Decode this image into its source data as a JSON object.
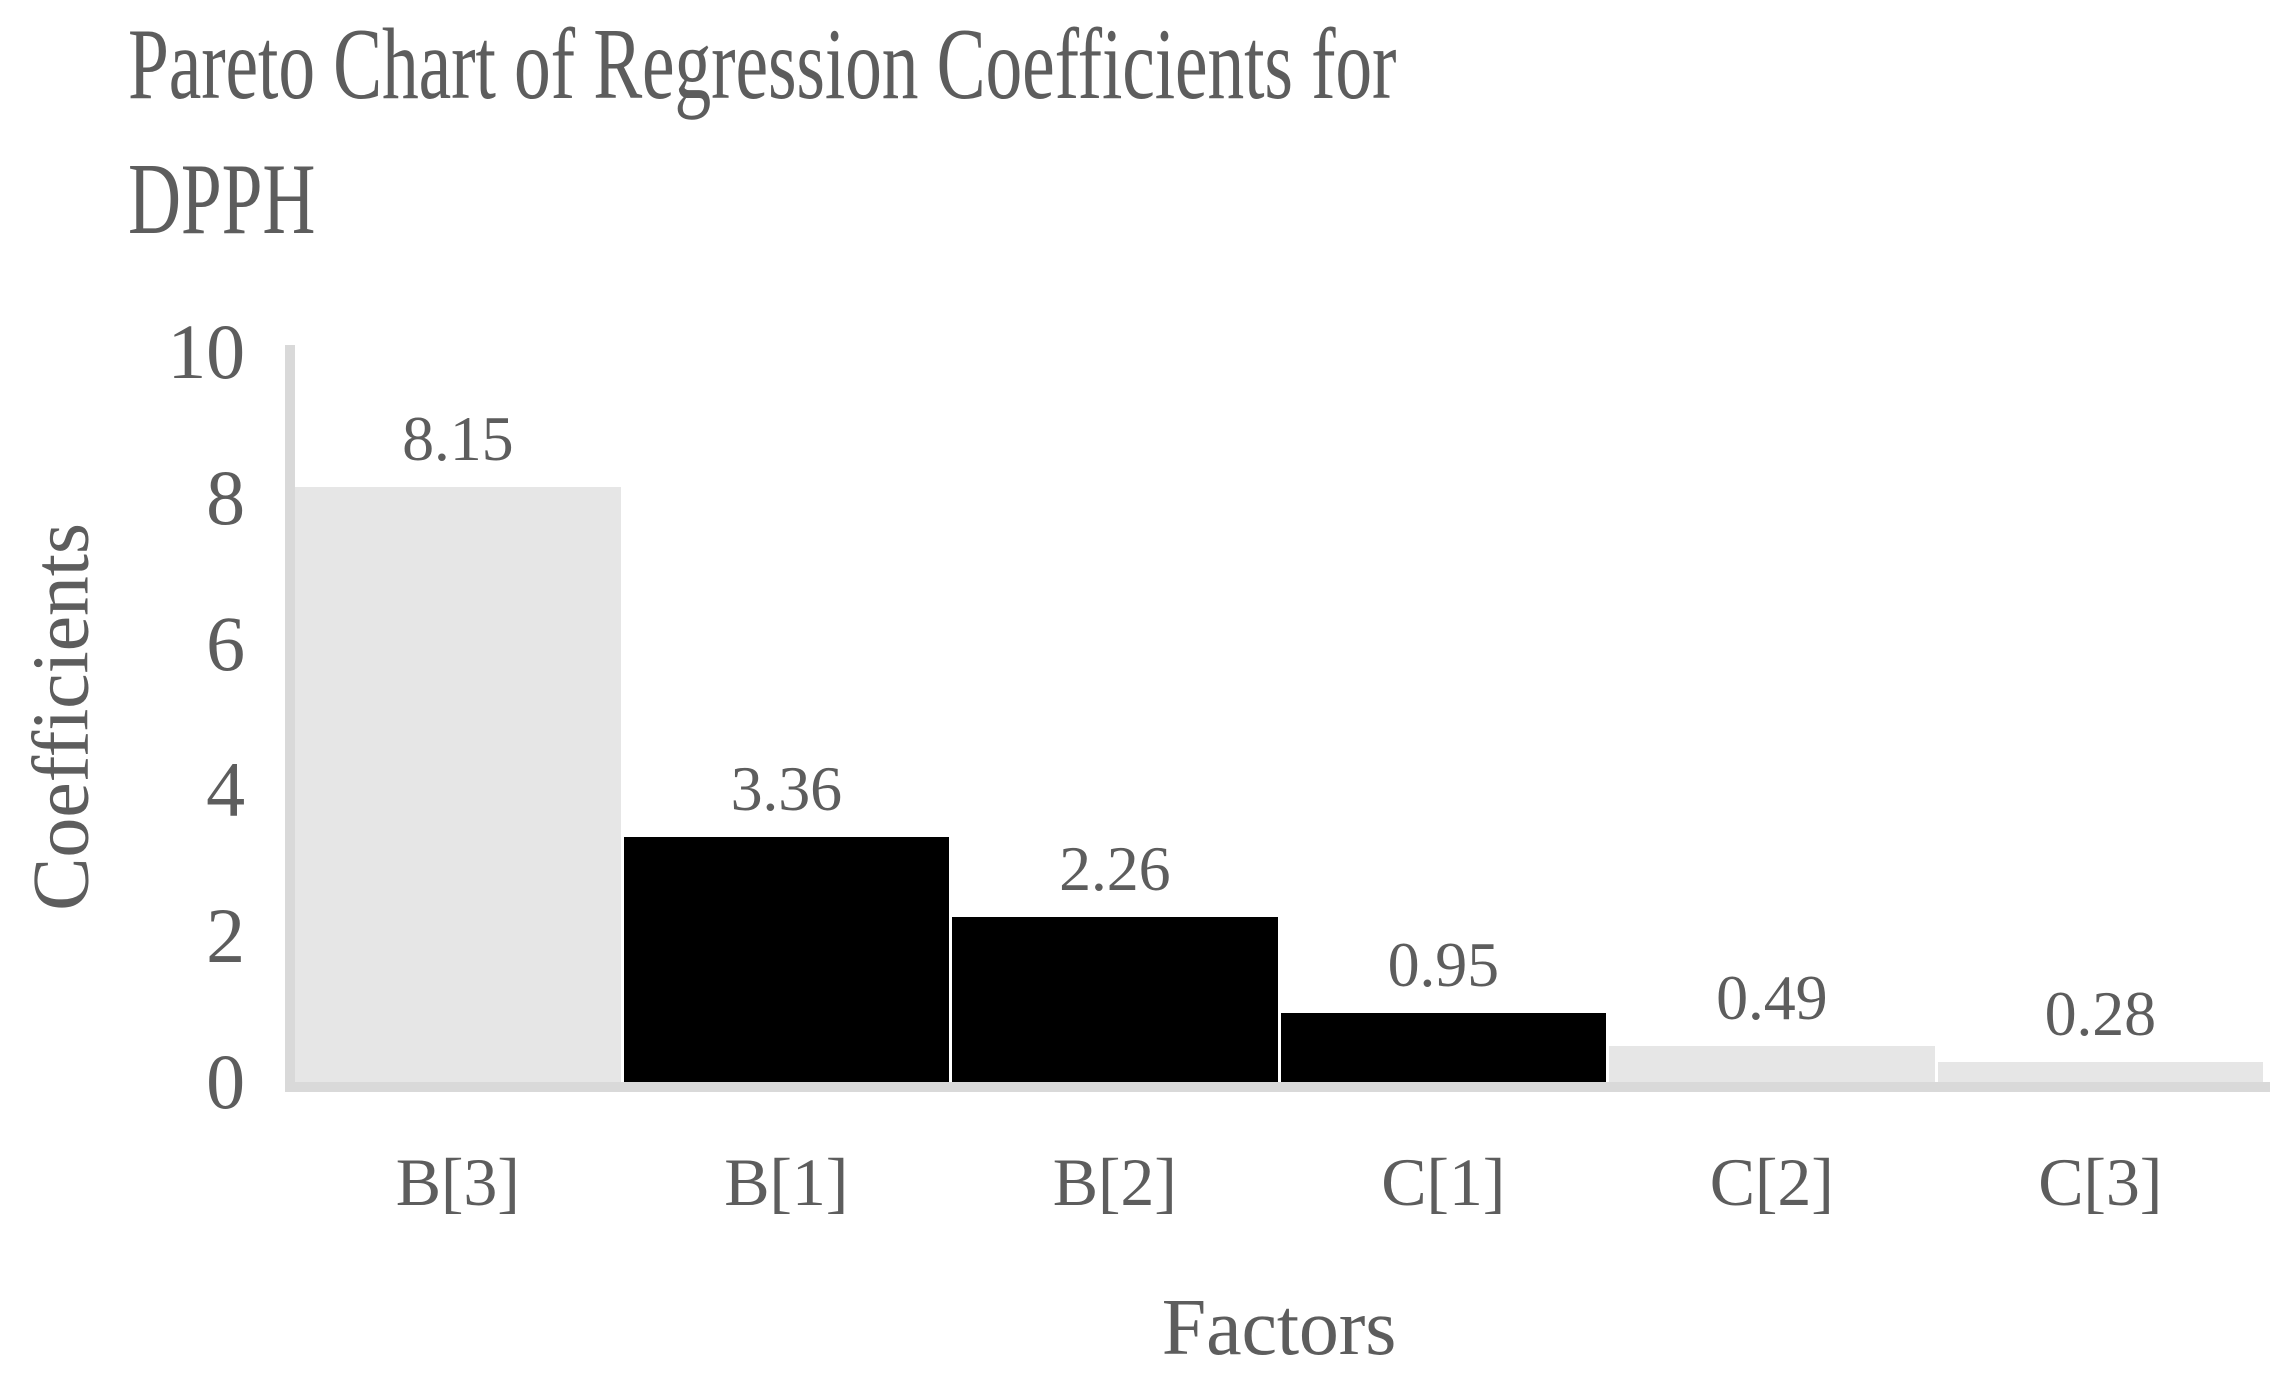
{
  "chart_data": {
    "type": "bar",
    "title": "Pareto Chart of Regression Coefficients for DPPH",
    "title_lines": [
      "Pareto Chart of Regression Coefficients for",
      "DPPH"
    ],
    "xlabel": "Factors",
    "ylabel": "Coefficients",
    "categories": [
      "B[3]",
      "B[1]",
      "B[2]",
      "C[1]",
      "C[2]",
      "C[3]"
    ],
    "values": [
      8.15,
      3.36,
      2.26,
      0.95,
      0.49,
      0.28
    ],
    "data_labels": [
      "8.15",
      "3.36",
      "2.26",
      "0.95",
      "0.49",
      "0.28"
    ],
    "bar_colors": [
      "#e6e6e6",
      "#000000",
      "#000000",
      "#000000",
      "#e6e6e6",
      "#e6e6e6"
    ],
    "ylim": [
      0,
      10
    ],
    "yticks": [
      10,
      8,
      6,
      4,
      2,
      0
    ],
    "grid": false,
    "legend": "none",
    "colors": {
      "text": "#5d5d5d",
      "axis_line": "#d9d9d9",
      "light_bar": "#e6e6e6",
      "dark_bar": "#000000",
      "background": "#ffffff"
    }
  }
}
